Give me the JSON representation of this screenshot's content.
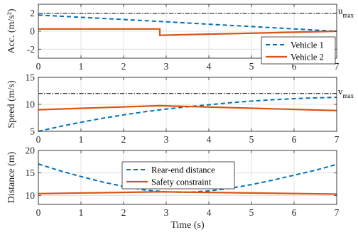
{
  "chart_data": [
    {
      "type": "line",
      "ylabel": "Acc. (m/s²)",
      "xlim": [
        0,
        7
      ],
      "ylim": [
        -3,
        3
      ],
      "xticks": [
        0,
        1,
        2,
        3,
        4,
        5,
        6,
        7
      ],
      "yticks": [
        -2,
        0,
        2
      ],
      "grid": true,
      "legend": "bottom-right",
      "reference": {
        "label": "u",
        "subscript": "max",
        "y": 2
      },
      "series": [
        {
          "name": "Vehicle 1",
          "color": "#0072BD",
          "style": "dashed",
          "x": [
            0,
            1,
            2,
            3,
            4,
            5,
            6,
            7
          ],
          "y": [
            1.8,
            1.55,
            1.3,
            1.05,
            0.78,
            0.52,
            0.26,
            0.0
          ]
        },
        {
          "name": "Vehicle 2",
          "color": "#D95319",
          "style": "solid",
          "x": [
            0,
            2.85,
            2.85,
            7
          ],
          "y": [
            0.25,
            0.25,
            -0.45,
            0.0
          ]
        }
      ]
    },
    {
      "type": "line",
      "ylabel": "Speed (m/s)",
      "xlim": [
        0,
        7
      ],
      "ylim": [
        5,
        15
      ],
      "xticks": [
        0,
        1,
        2,
        3,
        4,
        5,
        6,
        7
      ],
      "yticks": [
        5,
        10,
        15
      ],
      "grid": true,
      "reference": {
        "label": "v",
        "subscript": "max",
        "y": 12
      },
      "series": [
        {
          "name": "Vehicle 1",
          "color": "#0072BD",
          "style": "dashed",
          "x": [
            0,
            0.5,
            1,
            1.5,
            2,
            2.5,
            3,
            3.5,
            4,
            4.5,
            5,
            5.5,
            6,
            6.5,
            7
          ],
          "y": [
            5.0,
            5.88,
            6.68,
            7.41,
            8.05,
            8.63,
            9.13,
            9.55,
            9.92,
            10.3,
            10.6,
            10.85,
            11.05,
            11.2,
            11.3
          ]
        },
        {
          "name": "Vehicle 2",
          "color": "#D95319",
          "style": "solid",
          "x": [
            0,
            2.85,
            7
          ],
          "y": [
            9.0,
            9.75,
            8.85
          ]
        }
      ]
    },
    {
      "type": "line",
      "xlabel": "Time (s)",
      "ylabel": "Distance (m)",
      "xlim": [
        0,
        7
      ],
      "ylim": [
        8,
        20
      ],
      "xticks": [
        0,
        1,
        2,
        3,
        4,
        5,
        6,
        7
      ],
      "yticks": [
        10,
        15,
        20
      ],
      "grid": true,
      "legend": "top-center",
      "series": [
        {
          "name": "Rear-end distance",
          "color": "#0072BD",
          "style": "dashed",
          "x": [
            0,
            0.5,
            1,
            1.5,
            2,
            2.5,
            3,
            3.5,
            4,
            4.5,
            5,
            5.5,
            6,
            6.5,
            7
          ],
          "y": [
            17.0,
            15.5,
            14.2,
            13.0,
            12.0,
            11.2,
            10.8,
            10.7,
            11.0,
            11.6,
            12.4,
            13.4,
            14.5,
            15.6,
            16.9
          ]
        },
        {
          "name": "Safety constraint",
          "color": "#D95319",
          "style": "solid",
          "x": [
            0,
            2.85,
            7
          ],
          "y": [
            10.4,
            10.8,
            10.3
          ]
        }
      ]
    }
  ]
}
